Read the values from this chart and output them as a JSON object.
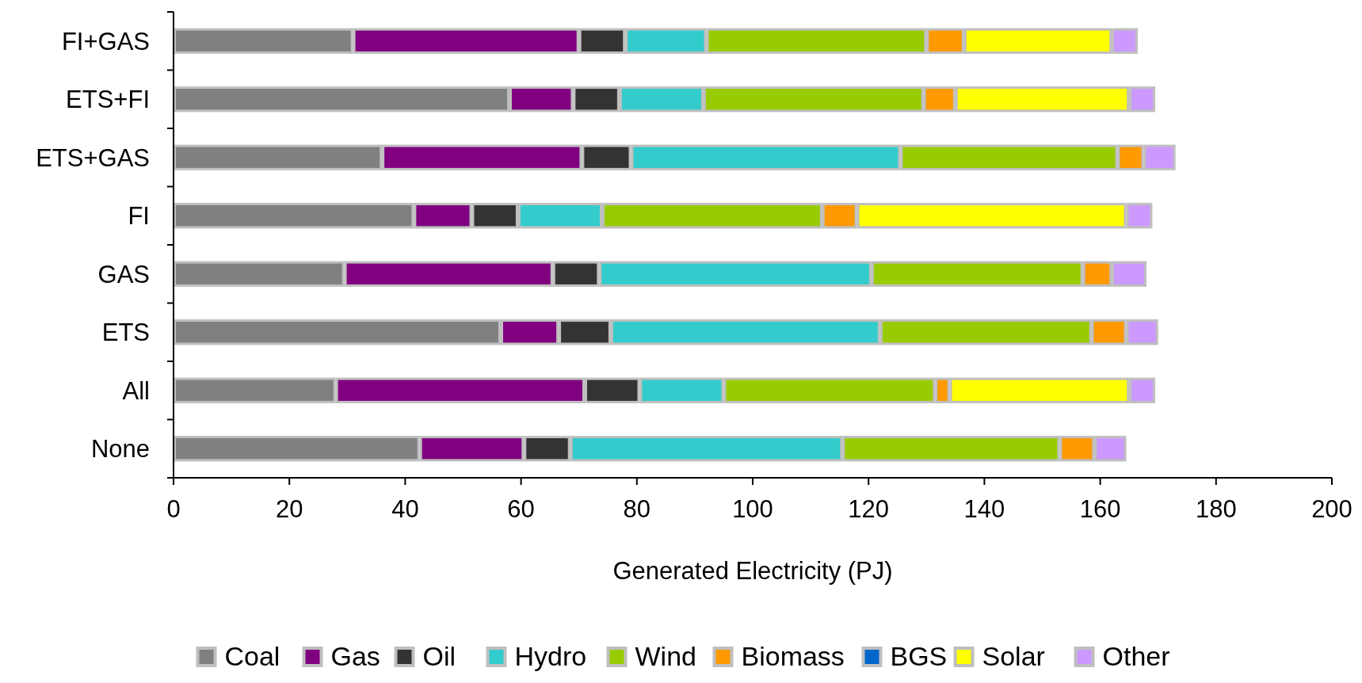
{
  "chart_data": {
    "type": "bar",
    "orientation": "horizontal",
    "stacked": true,
    "xlabel": "Generated Electricity (PJ)",
    "categories": [
      "FI+GAS",
      "ETS+FI",
      "ETS+GAS",
      "FI",
      "GAS",
      "ETS",
      "All",
      "None"
    ],
    "series": [
      {
        "name": "Coal",
        "color": "#808080",
        "values": [
          31,
          58,
          36,
          41.5,
          29.5,
          56.5,
          28,
          42.5
        ]
      },
      {
        "name": "Gas",
        "color": "#800080",
        "values": [
          39,
          11,
          34.5,
          10,
          36,
          10,
          43,
          18
        ]
      },
      {
        "name": "Oil",
        "color": "#333333",
        "values": [
          8,
          8,
          8.5,
          8,
          8,
          9,
          9.5,
          8
        ]
      },
      {
        "name": "Hydro",
        "color": "#33cccc",
        "values": [
          14,
          14.5,
          46.5,
          14.5,
          47,
          46.5,
          14.5,
          47
        ]
      },
      {
        "name": "Wind",
        "color": "#99cc00",
        "values": [
          38,
          38,
          37.5,
          38,
          36.5,
          36.5,
          36.5,
          37.5
        ]
      },
      {
        "name": "Biomass",
        "color": "#ff9900",
        "values": [
          6.5,
          5.5,
          4.5,
          6,
          5,
          6,
          2.5,
          6
        ]
      },
      {
        "name": "BGS",
        "color": "#0066cc",
        "values": [
          0,
          0,
          0,
          0,
          0,
          0,
          0,
          0
        ]
      },
      {
        "name": "Solar",
        "color": "#ffff00",
        "values": [
          25.5,
          30,
          0,
          46.5,
          0,
          0,
          31,
          0
        ]
      },
      {
        "name": "Other",
        "color": "#cc99ff",
        "values": [
          4.5,
          4.5,
          5.5,
          4.5,
          6,
          5.5,
          4.5,
          5.5
        ]
      }
    ],
    "xlim": [
      0,
      200
    ],
    "xticks": [
      0,
      20,
      40,
      60,
      80,
      100,
      120,
      140,
      160,
      180,
      200
    ],
    "grid": false,
    "legend": "bottom"
  }
}
